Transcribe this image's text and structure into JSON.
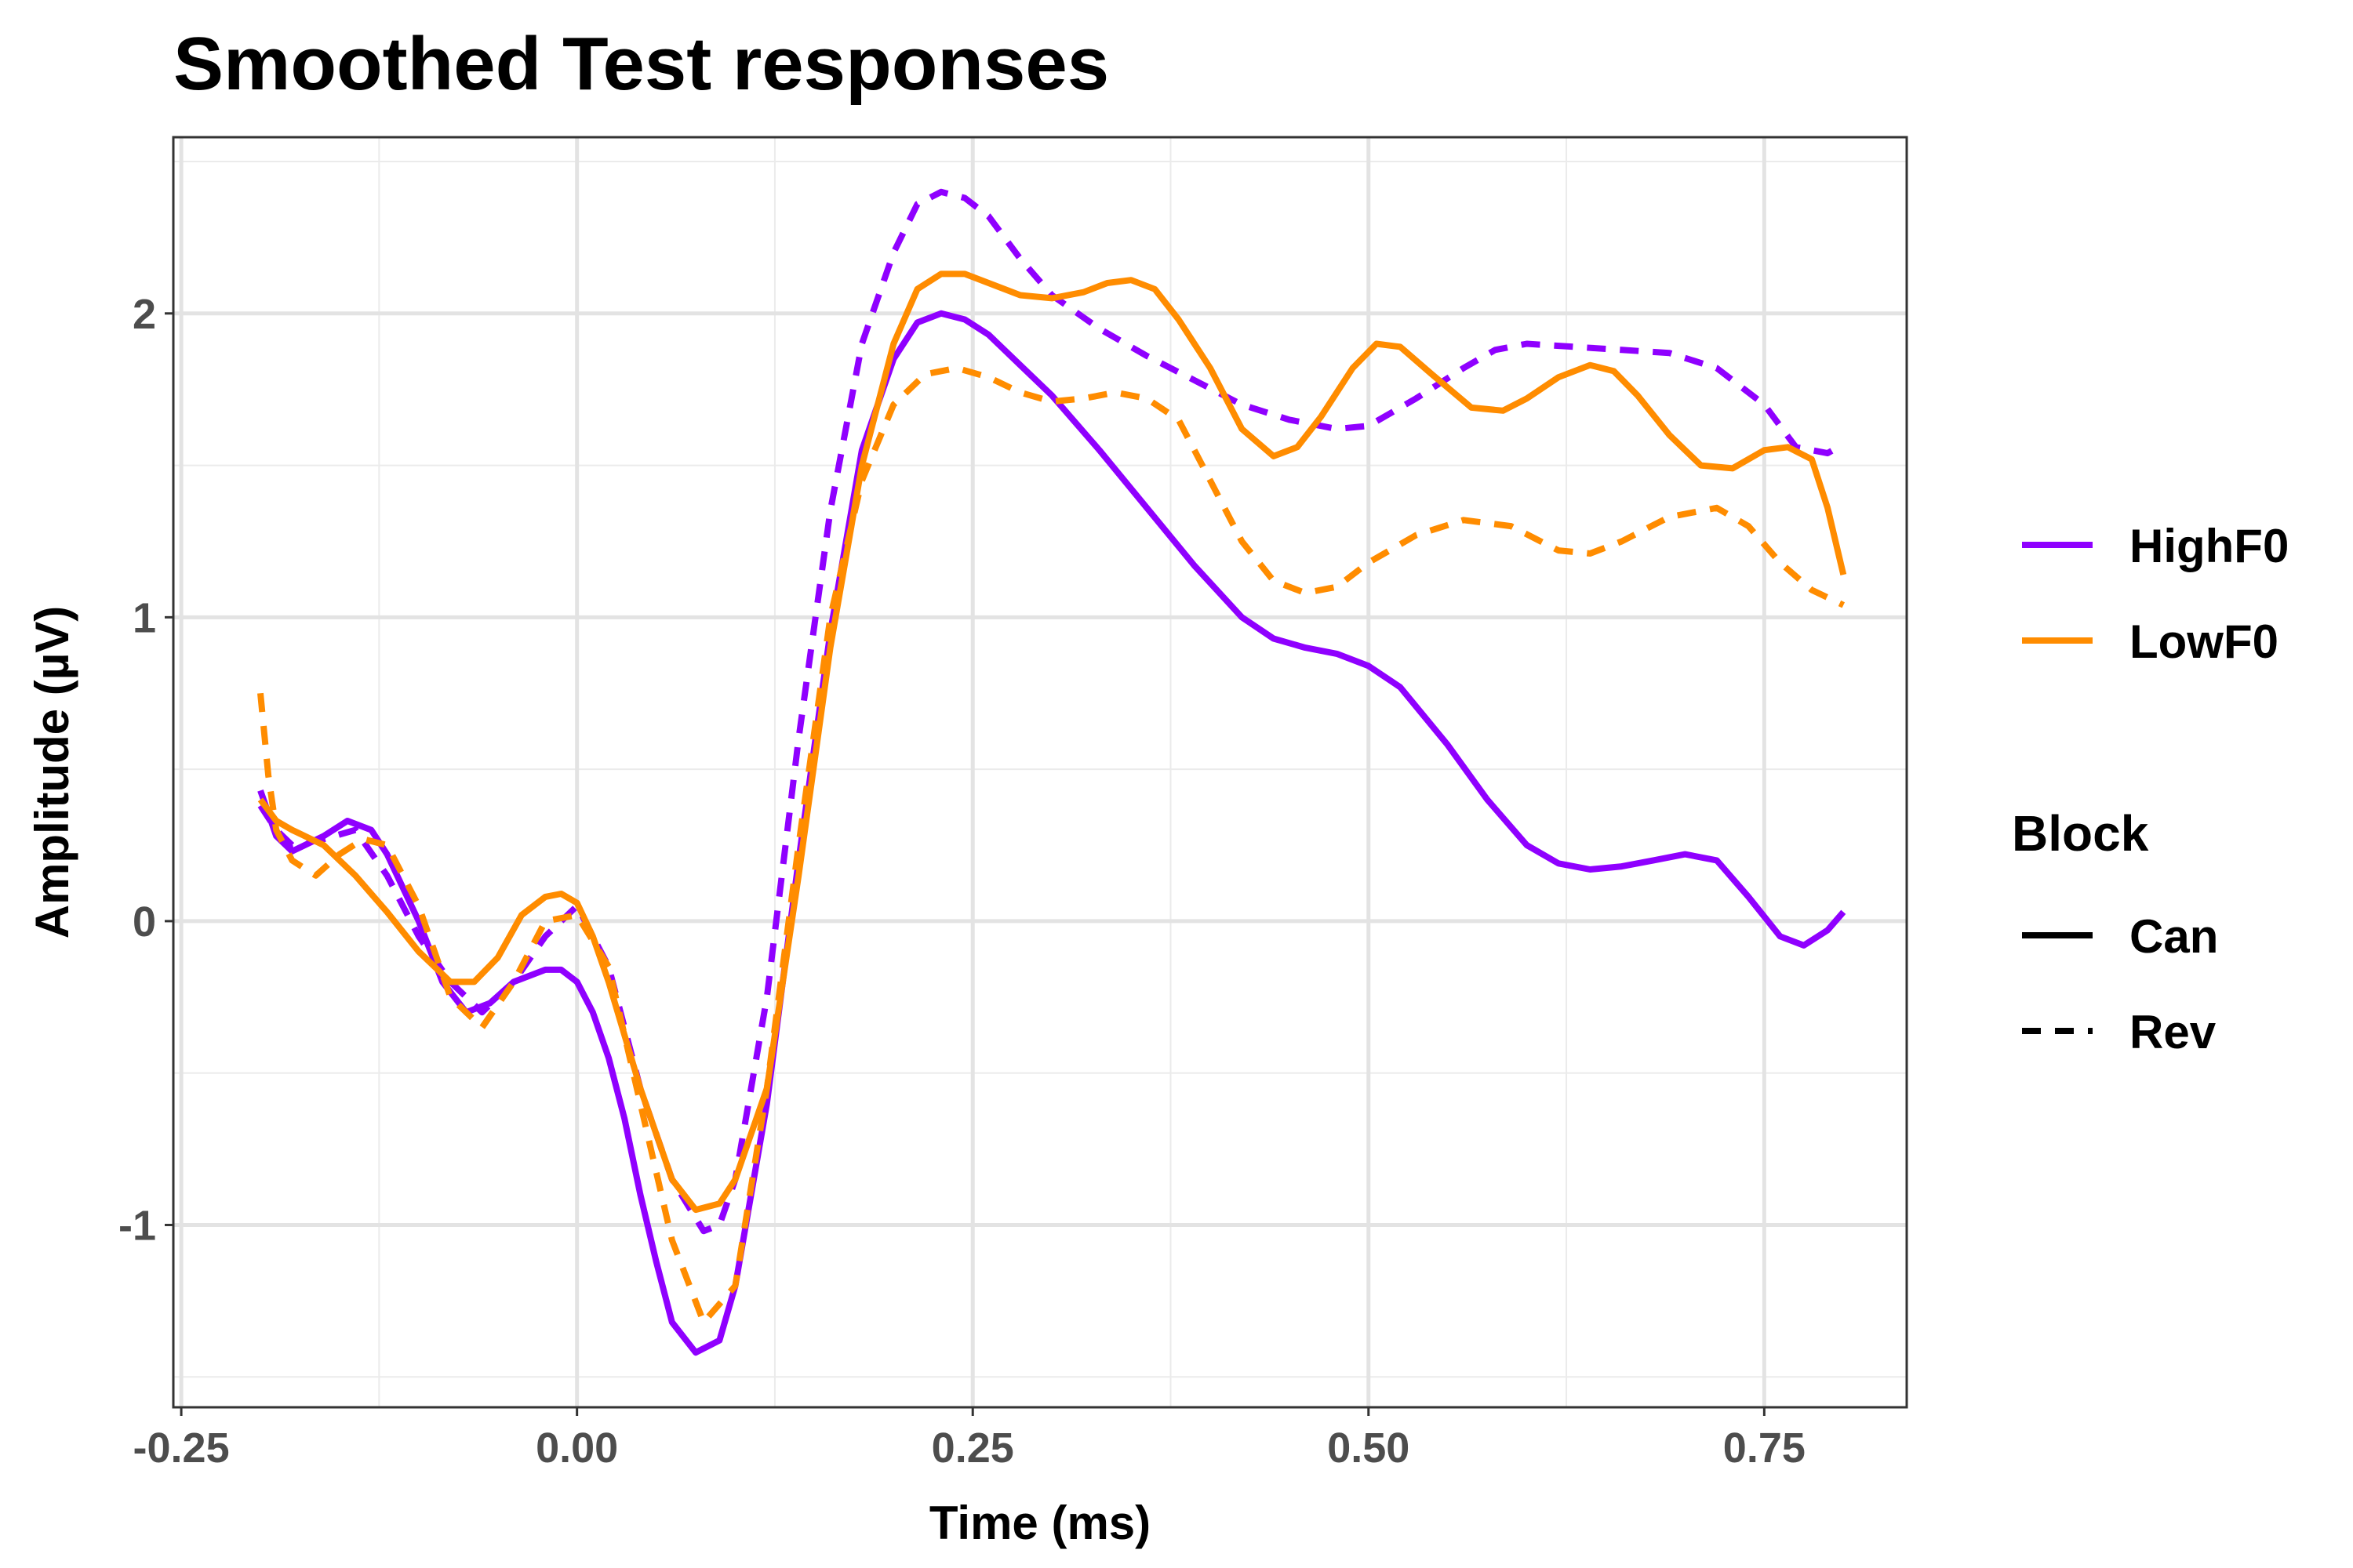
{
  "chart_data": {
    "type": "line",
    "title": "Smoothed Test responses",
    "xlabel": "Time (ms)",
    "ylabel": "Amplitude (µV)",
    "xlim": [
      -0.255,
      0.84
    ],
    "ylim": [
      -1.6,
      2.58
    ],
    "x_ticks": [
      -0.25,
      0.0,
      0.25,
      0.5,
      0.75
    ],
    "x_tick_labels": [
      "-0.25",
      "0.00",
      "0.25",
      "0.50",
      "0.75"
    ],
    "y_ticks": [
      -1,
      0,
      1,
      2
    ],
    "y_tick_labels": [
      "-1",
      "0",
      "1",
      "2"
    ],
    "grid": true,
    "legend_position": "right",
    "colors": {
      "HighF0": "#8f00ff",
      "LowF0": "#ff8c00"
    },
    "legend": {
      "color_entries": [
        "HighF0",
        "LowF0"
      ],
      "linetype_title": "Block",
      "linetype_entries": [
        "Can",
        "Rev"
      ]
    },
    "series": [
      {
        "name": "HighF0",
        "block": "Can",
        "x": [
          -0.2,
          -0.19,
          -0.18,
          -0.16,
          -0.145,
          -0.13,
          -0.12,
          -0.1,
          -0.085,
          -0.07,
          -0.055,
          -0.04,
          -0.02,
          -0.01,
          0.0,
          0.01,
          0.02,
          0.03,
          0.04,
          0.05,
          0.06,
          0.075,
          0.09,
          0.1,
          0.12,
          0.14,
          0.16,
          0.18,
          0.2,
          0.215,
          0.23,
          0.245,
          0.26,
          0.28,
          0.3,
          0.33,
          0.36,
          0.39,
          0.42,
          0.44,
          0.46,
          0.48,
          0.5,
          0.52,
          0.55,
          0.575,
          0.6,
          0.62,
          0.64,
          0.66,
          0.68,
          0.7,
          0.72,
          0.74,
          0.76,
          0.775,
          0.79,
          0.8
        ],
        "y": [
          0.43,
          0.28,
          0.23,
          0.28,
          0.33,
          0.3,
          0.22,
          0.0,
          -0.2,
          -0.3,
          -0.27,
          -0.2,
          -0.16,
          -0.16,
          -0.2,
          -0.3,
          -0.45,
          -0.65,
          -0.9,
          -1.12,
          -1.32,
          -1.42,
          -1.38,
          -1.2,
          -0.6,
          0.2,
          0.95,
          1.55,
          1.85,
          1.97,
          2.0,
          1.98,
          1.93,
          1.83,
          1.73,
          1.55,
          1.36,
          1.17,
          1.0,
          0.93,
          0.9,
          0.88,
          0.84,
          0.77,
          0.58,
          0.4,
          0.25,
          0.19,
          0.17,
          0.18,
          0.2,
          0.22,
          0.2,
          0.08,
          -0.05,
          -0.08,
          -0.03,
          0.03
        ]
      },
      {
        "name": "HighF0",
        "block": "Rev",
        "x": [
          -0.2,
          -0.19,
          -0.18,
          -0.16,
          -0.14,
          -0.12,
          -0.1,
          -0.08,
          -0.06,
          -0.04,
          -0.02,
          0.0,
          0.02,
          0.04,
          0.06,
          0.08,
          0.09,
          0.1,
          0.12,
          0.14,
          0.16,
          0.18,
          0.2,
          0.215,
          0.23,
          0.245,
          0.26,
          0.28,
          0.3,
          0.33,
          0.36,
          0.39,
          0.42,
          0.45,
          0.48,
          0.5,
          0.53,
          0.56,
          0.58,
          0.6,
          0.63,
          0.66,
          0.69,
          0.72,
          0.75,
          0.77,
          0.79,
          0.8
        ],
        "y": [
          0.38,
          0.3,
          0.25,
          0.27,
          0.3,
          0.15,
          -0.05,
          -0.2,
          -0.3,
          -0.2,
          -0.05,
          0.05,
          -0.15,
          -0.55,
          -0.85,
          -1.02,
          -1.0,
          -0.85,
          -0.25,
          0.6,
          1.35,
          1.9,
          2.2,
          2.36,
          2.4,
          2.38,
          2.32,
          2.18,
          2.06,
          1.95,
          1.86,
          1.78,
          1.7,
          1.65,
          1.62,
          1.63,
          1.72,
          1.82,
          1.88,
          1.9,
          1.89,
          1.88,
          1.87,
          1.82,
          1.7,
          1.56,
          1.54,
          1.57
        ]
      },
      {
        "name": "LowF0",
        "block": "Can",
        "x": [
          -0.2,
          -0.19,
          -0.18,
          -0.16,
          -0.14,
          -0.12,
          -0.1,
          -0.08,
          -0.065,
          -0.05,
          -0.035,
          -0.02,
          -0.01,
          0.0,
          0.01,
          0.02,
          0.04,
          0.06,
          0.075,
          0.09,
          0.1,
          0.12,
          0.14,
          0.16,
          0.18,
          0.2,
          0.215,
          0.23,
          0.245,
          0.26,
          0.28,
          0.3,
          0.32,
          0.335,
          0.35,
          0.365,
          0.38,
          0.4,
          0.42,
          0.44,
          0.455,
          0.47,
          0.49,
          0.505,
          0.52,
          0.54,
          0.565,
          0.585,
          0.6,
          0.62,
          0.64,
          0.655,
          0.67,
          0.69,
          0.71,
          0.73,
          0.75,
          0.765,
          0.78,
          0.79,
          0.8
        ],
        "y": [
          0.4,
          0.33,
          0.3,
          0.25,
          0.15,
          0.03,
          -0.1,
          -0.2,
          -0.2,
          -0.12,
          0.02,
          0.08,
          0.09,
          0.06,
          -0.05,
          -0.2,
          -0.55,
          -0.85,
          -0.95,
          -0.93,
          -0.85,
          -0.55,
          0.15,
          0.9,
          1.5,
          1.9,
          2.08,
          2.13,
          2.13,
          2.1,
          2.06,
          2.05,
          2.07,
          2.1,
          2.11,
          2.08,
          1.98,
          1.82,
          1.62,
          1.53,
          1.56,
          1.66,
          1.82,
          1.9,
          1.89,
          1.8,
          1.69,
          1.68,
          1.72,
          1.79,
          1.83,
          1.81,
          1.73,
          1.6,
          1.5,
          1.49,
          1.55,
          1.56,
          1.52,
          1.36,
          1.14
        ]
      },
      {
        "name": "LowF0",
        "block": "Rev",
        "x": [
          -0.2,
          -0.195,
          -0.19,
          -0.18,
          -0.165,
          -0.15,
          -0.135,
          -0.12,
          -0.1,
          -0.08,
          -0.06,
          -0.04,
          -0.02,
          0.0,
          0.02,
          0.04,
          0.06,
          0.08,
          0.1,
          0.12,
          0.14,
          0.16,
          0.18,
          0.2,
          0.22,
          0.24,
          0.26,
          0.28,
          0.3,
          0.32,
          0.34,
          0.36,
          0.38,
          0.4,
          0.42,
          0.44,
          0.46,
          0.48,
          0.5,
          0.53,
          0.56,
          0.59,
          0.62,
          0.64,
          0.66,
          0.69,
          0.72,
          0.74,
          0.76,
          0.78,
          0.8
        ],
        "y": [
          0.75,
          0.48,
          0.3,
          0.2,
          0.15,
          0.22,
          0.27,
          0.25,
          0.05,
          -0.25,
          -0.35,
          -0.2,
          0.0,
          0.02,
          -0.15,
          -0.6,
          -1.05,
          -1.32,
          -1.2,
          -0.55,
          0.25,
          1.0,
          1.45,
          1.7,
          1.8,
          1.82,
          1.79,
          1.74,
          1.71,
          1.72,
          1.74,
          1.72,
          1.65,
          1.45,
          1.25,
          1.12,
          1.08,
          1.1,
          1.18,
          1.27,
          1.32,
          1.3,
          1.22,
          1.21,
          1.25,
          1.33,
          1.36,
          1.3,
          1.18,
          1.09,
          1.04
        ]
      }
    ]
  }
}
